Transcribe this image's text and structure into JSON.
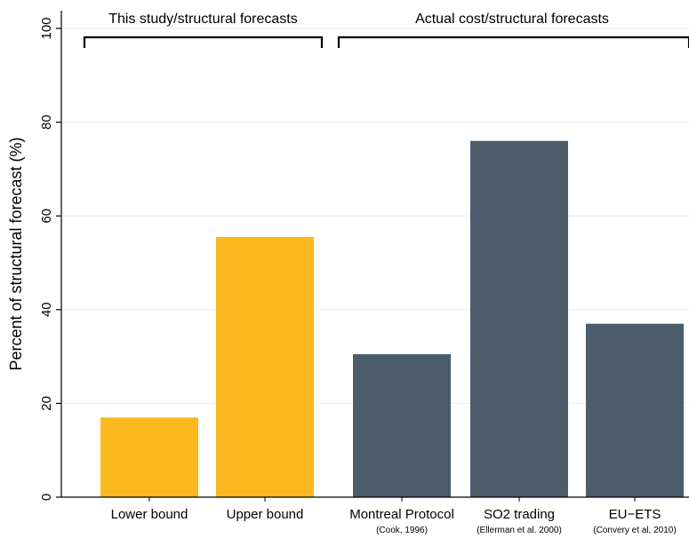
{
  "chart_data": {
    "type": "bar",
    "ylabel": "Percent of structural forecast (%)",
    "xlabel": "",
    "ylim": [
      0,
      100
    ],
    "yticks": [
      0,
      20,
      40,
      60,
      80,
      100
    ],
    "grid": true,
    "categories": [
      "Lower bound",
      "Upper bound",
      "Montreal Protocol",
      "SO2 trading",
      "EU−ETS"
    ],
    "sublabels": [
      "",
      "",
      "(Cook, 1996)",
      "(Ellerman et al. 2000)",
      "(Convery et al, 2010)"
    ],
    "values": [
      17,
      55.5,
      30.5,
      76,
      37
    ],
    "colors": [
      "#fbb81f",
      "#fbb81f",
      "#4b5c6c",
      "#4b5c6c",
      "#4b5c6c"
    ],
    "groups": [
      {
        "label": "This study/structural forecasts",
        "members": [
          0,
          1
        ]
      },
      {
        "label": "Actual cost/structural forecasts",
        "members": [
          2,
          3,
          4
        ]
      }
    ]
  }
}
